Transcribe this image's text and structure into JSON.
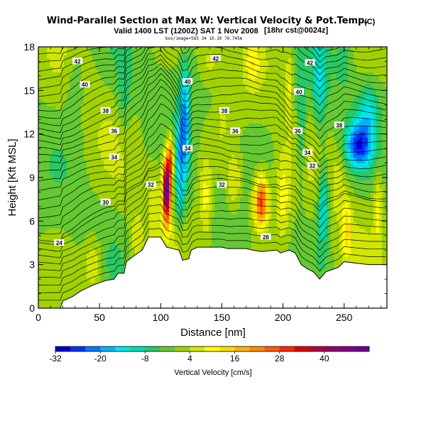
{
  "header": {
    "title": "Wind-Parallel Section at Max W: Vertical Velocity & Pot.Temp.",
    "title_mark": "(C)",
    "subtitle": "Valid 1400 LST (1200Z) SAT 1 Nov 2008",
    "subtitle_note": "[18hr cst@0024z]",
    "small_note": "box/image=585 34 10.10 70.745m"
  },
  "chart_data": {
    "type": "heatmap",
    "xlabel": "Distance [nm]",
    "ylabel": "Height [Kft MSL]",
    "xlim": [
      0,
      285
    ],
    "ylim": [
      0,
      18
    ],
    "x_ticks": [
      0,
      50,
      100,
      150,
      200,
      250
    ],
    "y_ticks": [
      0,
      3,
      6,
      9,
      12,
      15,
      18
    ],
    "colorbar": {
      "title": "Vertical Velocity [cm/s]",
      "tick_labels": [
        "-32",
        "-20",
        "-8",
        "4",
        "16",
        "28",
        "40"
      ],
      "tick_values": [
        -32,
        -20,
        -8,
        4,
        16,
        28,
        40
      ],
      "range": [
        -32,
        52
      ],
      "colors": [
        "#0000c8",
        "#0032ff",
        "#0078ff",
        "#00b4ff",
        "#00e6f0",
        "#00dcb4",
        "#28c864",
        "#64c832",
        "#a0d200",
        "#d2e600",
        "#ffff00",
        "#ffdc00",
        "#ffb400",
        "#ff8c00",
        "#ff5a00",
        "#ff2800",
        "#dc0000",
        "#b4003c",
        "#96006e",
        "#820082",
        "#6e0096"
      ]
    },
    "terrain": [
      [
        0,
        0
      ],
      [
        18,
        0
      ],
      [
        20,
        0.5
      ],
      [
        28,
        0.8
      ],
      [
        35,
        1.2
      ],
      [
        45,
        1.6
      ],
      [
        55,
        1.9
      ],
      [
        62,
        2.0
      ],
      [
        65,
        2.4
      ],
      [
        70,
        2.4
      ],
      [
        72,
        3.2
      ],
      [
        78,
        3.6
      ],
      [
        85,
        4.0
      ],
      [
        90,
        4.9
      ],
      [
        100,
        4.9
      ],
      [
        102,
        4.6
      ],
      [
        105,
        4.2
      ],
      [
        110,
        4.1
      ],
      [
        115,
        4.0
      ],
      [
        118,
        3.3
      ],
      [
        123,
        3.4
      ],
      [
        125,
        4.0
      ],
      [
        130,
        4.2
      ],
      [
        150,
        4.2
      ],
      [
        155,
        4.1
      ],
      [
        165,
        4.1
      ],
      [
        170,
        4.1
      ],
      [
        175,
        4.0
      ],
      [
        182,
        3.9
      ],
      [
        195,
        4.0
      ],
      [
        198,
        3.8
      ],
      [
        205,
        4.0
      ],
      [
        210,
        3.8
      ],
      [
        215,
        3.0
      ],
      [
        220,
        2.7
      ],
      [
        225,
        2.5
      ],
      [
        230,
        2.0
      ],
      [
        235,
        2.5
      ],
      [
        245,
        2.8
      ],
      [
        250,
        3.2
      ],
      [
        270,
        3.0
      ],
      [
        285,
        3.0
      ]
    ],
    "isentrope_labels": [
      {
        "text": "42",
        "x": 32,
        "y": 17.0
      },
      {
        "text": "42",
        "x": 145,
        "y": 17.2
      },
      {
        "text": "42",
        "x": 222,
        "y": 16.9
      },
      {
        "text": "40",
        "x": 38,
        "y": 15.4
      },
      {
        "text": "40",
        "x": 122,
        "y": 15.6
      },
      {
        "text": "40",
        "x": 213,
        "y": 14.9
      },
      {
        "text": "38",
        "x": 55,
        "y": 13.6
      },
      {
        "text": "38",
        "x": 152,
        "y": 13.6
      },
      {
        "text": "38",
        "x": 246,
        "y": 12.6
      },
      {
        "text": "36",
        "x": 62,
        "y": 12.2
      },
      {
        "text": "36",
        "x": 161,
        "y": 12.2
      },
      {
        "text": "36",
        "x": 212,
        "y": 12.2
      },
      {
        "text": "34",
        "x": 62,
        "y": 10.4
      },
      {
        "text": "34",
        "x": 122,
        "y": 11.0
      },
      {
        "text": "34",
        "x": 220,
        "y": 10.7
      },
      {
        "text": "32",
        "x": 92,
        "y": 8.5
      },
      {
        "text": "32",
        "x": 150,
        "y": 8.5
      },
      {
        "text": "32",
        "x": 224,
        "y": 9.8
      },
      {
        "text": "30",
        "x": 55,
        "y": 7.3
      },
      {
        "text": "28",
        "x": 186,
        "y": 4.9
      },
      {
        "text": "24",
        "x": 17,
        "y": 4.5
      }
    ],
    "features": [
      {
        "x": 105,
        "y": 8.2,
        "sx": 3.5,
        "sy": 2.2,
        "w": 50
      },
      {
        "x": 108,
        "y": 10.5,
        "sx": 2.5,
        "sy": 1.5,
        "w": 22
      },
      {
        "x": 118,
        "y": 11.0,
        "sx": 5,
        "sy": 3,
        "w": -18
      },
      {
        "x": 120,
        "y": 14.5,
        "sx": 4,
        "sy": 3.0,
        "w": -12
      },
      {
        "x": 115,
        "y": 7.5,
        "sx": 4,
        "sy": 2,
        "w": -10
      },
      {
        "x": 182,
        "y": 7.3,
        "sx": 6,
        "sy": 1.8,
        "w": 30
      },
      {
        "x": 160,
        "y": 8.8,
        "sx": 6,
        "sy": 2,
        "w": 10
      },
      {
        "x": 200,
        "y": 7.5,
        "sx": 6,
        "sy": 3,
        "w": 10
      },
      {
        "x": 137,
        "y": 7.5,
        "sx": 5,
        "sy": 3,
        "w": 10
      },
      {
        "x": 95,
        "y": 7.0,
        "sx": 4,
        "sy": 3,
        "w": 5
      },
      {
        "x": 205,
        "y": 15.5,
        "sx": 3,
        "sy": 2.5,
        "w": 8
      },
      {
        "x": 215,
        "y": 12.5,
        "sx": 4,
        "sy": 4,
        "w": -10
      },
      {
        "x": 230,
        "y": 15.0,
        "sx": 6,
        "sy": 3,
        "w": -10
      },
      {
        "x": 262,
        "y": 11.2,
        "sx": 10,
        "sy": 1.5,
        "w": -24
      },
      {
        "x": 270,
        "y": 13.5,
        "sx": 8,
        "sy": 2.0,
        "w": -10
      },
      {
        "x": 233,
        "y": 7.0,
        "sx": 5,
        "sy": 3,
        "w": -14
      },
      {
        "x": 252,
        "y": 5.5,
        "sx": 4,
        "sy": 2,
        "w": 12
      },
      {
        "x": 278,
        "y": 7.0,
        "sx": 4,
        "sy": 2.5,
        "w": 10
      },
      {
        "x": 70,
        "y": 14.5,
        "sx": 6,
        "sy": 3,
        "w": -6
      },
      {
        "x": 30,
        "y": 15.5,
        "sx": 8,
        "sy": 3,
        "w": -5
      },
      {
        "x": 45,
        "y": 3.0,
        "sx": 8,
        "sy": 2,
        "w": 10
      },
      {
        "x": 80,
        "y": 4.5,
        "sx": 5,
        "sy": 2,
        "w": 6
      },
      {
        "x": 140,
        "y": 17.0,
        "sx": 8,
        "sy": 1.5,
        "w": 6
      },
      {
        "x": 175,
        "y": 16.8,
        "sx": 6,
        "sy": 1.5,
        "w": 8
      },
      {
        "x": 245,
        "y": 8.5,
        "sx": 5,
        "sy": 2,
        "w": 6
      },
      {
        "x": 150,
        "y": 12.8,
        "sx": 5,
        "sy": 2,
        "w": 4
      },
      {
        "x": 250,
        "y": 17.0,
        "sx": 6,
        "sy": 1.5,
        "w": -6
      }
    ]
  }
}
